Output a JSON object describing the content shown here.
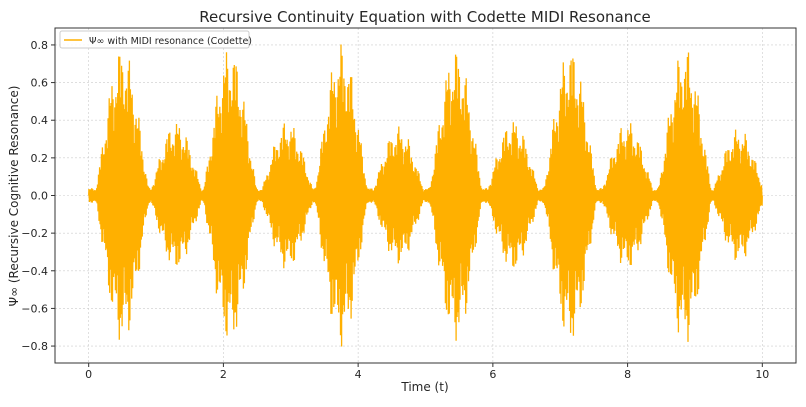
{
  "chart_data": {
    "type": "line",
    "title": "Recursive Continuity Equation with Codette MIDI Resonance",
    "xlabel": "Time (t)",
    "ylabel": "Ψ∞ (Recursive Cognitive Resonance)",
    "xlim": [
      -0.5,
      10.5
    ],
    "ylim": [
      -0.89,
      0.89
    ],
    "xticks": [
      0,
      2,
      4,
      6,
      8,
      10
    ],
    "xtick_labels": [
      "0",
      "2",
      "4",
      "6",
      "8",
      "10"
    ],
    "yticks": [
      -0.8,
      -0.6,
      -0.4,
      -0.2,
      0.0,
      0.2,
      0.4,
      0.6,
      0.8
    ],
    "ytick_labels": [
      "−0.8",
      "−0.6",
      "−0.4",
      "−0.2",
      "0.0",
      "0.2",
      "0.4",
      "0.6",
      "0.8"
    ],
    "grid": true,
    "legend": {
      "position": "top-left",
      "entries": [
        "Ψ∞ with MIDI resonance (Codette)"
      ]
    },
    "series": [
      {
        "name": "Ψ∞ with MIDI resonance (Codette)",
        "color": "#FFB000",
        "t_range": [
          0,
          10
        ],
        "envelope_peaks": [
          {
            "t": 0.5,
            "amp": 0.8
          },
          {
            "t": 1.3,
            "amp": 0.4
          },
          {
            "t": 2.1,
            "amp": 0.8
          },
          {
            "t": 2.95,
            "amp": 0.4
          },
          {
            "t": 3.75,
            "amp": 0.81
          },
          {
            "t": 4.6,
            "amp": 0.37
          },
          {
            "t": 5.45,
            "amp": 0.79
          },
          {
            "t": 6.3,
            "amp": 0.41
          },
          {
            "t": 7.15,
            "amp": 0.8
          },
          {
            "t": 8.0,
            "amp": 0.4
          },
          {
            "t": 8.85,
            "amp": 0.8
          },
          {
            "t": 9.65,
            "amp": 0.36
          }
        ]
      }
    ]
  }
}
